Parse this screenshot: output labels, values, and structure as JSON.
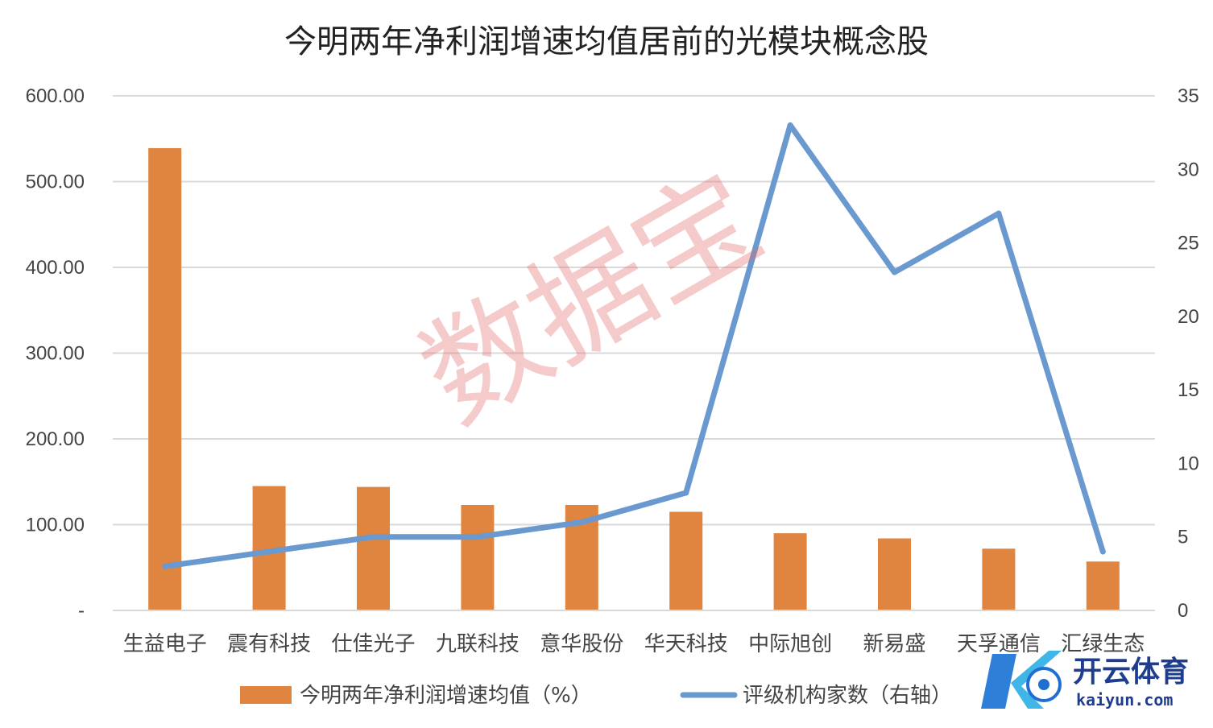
{
  "chart_data": {
    "type": "bar",
    "title": "今明两年净利润增速均值居前的光模块概念股",
    "categories": [
      "生益电子",
      "震有科技",
      "仕佳光子",
      "九联科技",
      "意华股份",
      "华天科技",
      "中际旭创",
      "新易盛",
      "天孚通信",
      "汇绿生态"
    ],
    "series": [
      {
        "name": "今明两年净利润增速均值（%）",
        "type": "bar",
        "axis": "left",
        "color": "#e0853f",
        "values": [
          539,
          145,
          144,
          123,
          123,
          115,
          90,
          84,
          72,
          57
        ]
      },
      {
        "name": "评级机构家数（右轴）",
        "type": "line",
        "axis": "right",
        "color": "#6a99cf",
        "values": [
          3,
          4,
          5,
          5,
          6,
          8,
          33,
          23,
          27,
          4
        ]
      }
    ],
    "y_left": {
      "ylim": [
        0,
        600
      ],
      "tick_values": [
        0,
        100,
        200,
        300,
        400,
        500,
        600
      ],
      "tick_labels": [
        "-",
        "100.00",
        "200.00",
        "300.00",
        "400.00",
        "500.00",
        "600.00"
      ]
    },
    "y_right": {
      "ylim": [
        0,
        35
      ],
      "tick_values": [
        0,
        5,
        10,
        15,
        20,
        25,
        30,
        35
      ],
      "tick_labels": [
        "0",
        "5",
        "10",
        "15",
        "20",
        "25",
        "30",
        "35"
      ]
    },
    "grid": true,
    "legend_position": "bottom"
  },
  "watermark": "数据宝",
  "logo": {
    "name": "开云体育",
    "sub": "kaiyun.com"
  }
}
